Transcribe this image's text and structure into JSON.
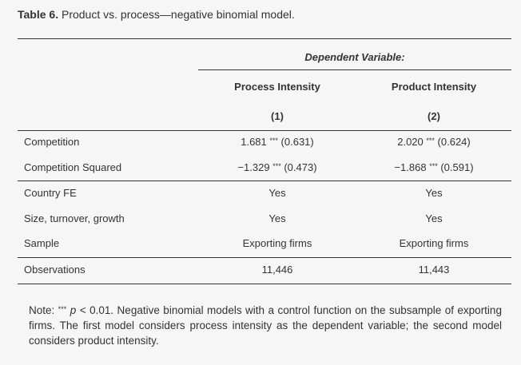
{
  "title": {
    "label": "Table 6.",
    "text": "Product vs. process—negative binomial model."
  },
  "table": {
    "dependent": "Dependent Variable:",
    "columns": [
      {
        "name": "Process Intensity",
        "number": "(1)"
      },
      {
        "name": "Product Intensity",
        "number": "(2)"
      }
    ],
    "coef_rows": [
      {
        "label": "Competition",
        "cells": [
          {
            "coef": "1.681",
            "stars": "***",
            "se": "(0.631)"
          },
          {
            "coef": "2.020",
            "stars": "***",
            "se": "(0.624)"
          }
        ]
      },
      {
        "label": "Competition Squared",
        "cells": [
          {
            "coef": "−1.329",
            "stars": "***",
            "se": "(0.473)"
          },
          {
            "coef": "−1.868",
            "stars": "***",
            "se": "(0.591)"
          }
        ]
      }
    ],
    "rows": [
      [
        "Country FE",
        "Yes",
        "Yes"
      ],
      [
        "Size, turnover, growth",
        "Yes",
        "Yes"
      ],
      [
        "Sample",
        "Exporting firms",
        "Exporting firms"
      ]
    ],
    "observations": [
      "Observations",
      "11,446",
      "11,443"
    ]
  },
  "note": {
    "prefix": "Note:",
    "stars": "***",
    "p": "p",
    "text": "< 0.01. Negative binomial models with a control function on the subsample of exporting firms. The first model considers process intensity as the dependent variable; the second model considers product intensity."
  }
}
